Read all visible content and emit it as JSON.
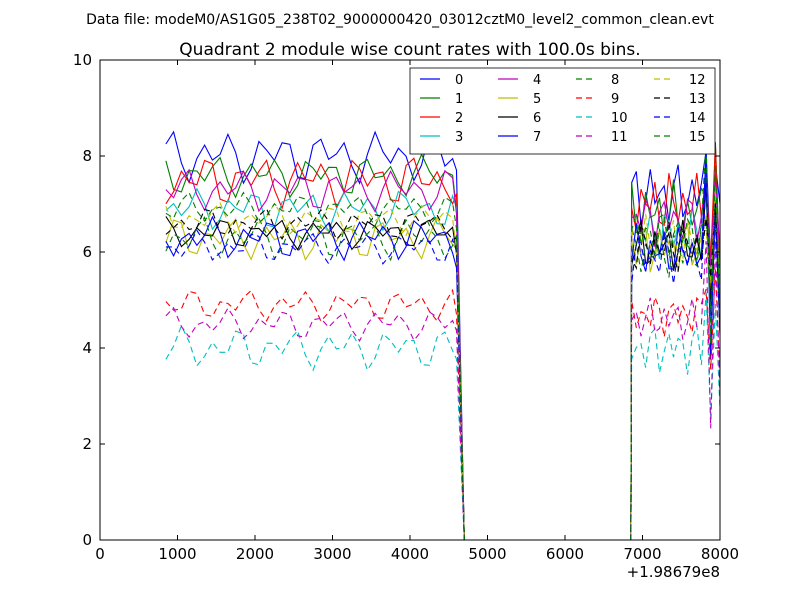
{
  "chart_data": {
    "type": "line",
    "suptitle": "Data file: modeM0/AS1G05_238T02_9000000420_03012cztM0_level2_common_clean.evt",
    "title": "Quadrant 2 module wise count rates with 100.0s bins.",
    "xlabel": "",
    "ylabel": "",
    "x_offset_label": "+1.98679e8",
    "xlim": [
      0,
      8000
    ],
    "ylim": [
      0,
      10
    ],
    "x_ticks": [
      0,
      1000,
      2000,
      3000,
      4000,
      5000,
      6000,
      7000,
      8000
    ],
    "y_ticks": [
      0,
      2,
      4,
      6,
      8,
      10
    ],
    "grid": false,
    "legend_position": "top-right",
    "segment1_x": [
      850,
      950,
      1050,
      1150,
      1250,
      1350,
      1450,
      1550,
      1650,
      1750,
      1850,
      1950,
      2050,
      2150,
      2250,
      2350,
      2450,
      2550,
      2650,
      2750,
      2850,
      2950,
      3050,
      3150,
      3250,
      3350,
      3450,
      3550,
      3650,
      3750,
      3850,
      3950,
      4050,
      4150,
      4250,
      4350,
      4450,
      4550,
      4600
    ],
    "segment2_x": [
      6860,
      6920,
      6980,
      7040,
      7100,
      7160,
      7220,
      7280,
      7340,
      7400,
      7460,
      7520,
      7580,
      7640,
      7700,
      7760,
      7820,
      7880,
      7940,
      8000
    ],
    "gap_start": 4700,
    "gap_end": 6850,
    "series": [
      {
        "name": "0",
        "color": "#0000ff",
        "dash": false,
        "base1": 8.0,
        "amp1": 0.5,
        "base2": 7.2,
        "amp2": 0.6
      },
      {
        "name": "1",
        "color": "#008000",
        "dash": false,
        "base1": 7.6,
        "amp1": 0.4,
        "base2": 6.8,
        "amp2": 0.6
      },
      {
        "name": "2",
        "color": "#ff0000",
        "dash": false,
        "base1": 7.5,
        "amp1": 0.5,
        "base2": 7.0,
        "amp2": 0.6
      },
      {
        "name": "3",
        "color": "#00bfbf",
        "dash": false,
        "base1": 6.9,
        "amp1": 0.4,
        "base2": 6.4,
        "amp2": 0.5
      },
      {
        "name": "4",
        "color": "#bf00bf",
        "dash": false,
        "base1": 7.3,
        "amp1": 0.4,
        "base2": 6.7,
        "amp2": 0.5
      },
      {
        "name": "5",
        "color": "#bfbf00",
        "dash": false,
        "base1": 6.3,
        "amp1": 0.4,
        "base2": 6.1,
        "amp2": 0.5
      },
      {
        "name": "6",
        "color": "#000000",
        "dash": false,
        "base1": 6.4,
        "amp1": 0.3,
        "base2": 6.1,
        "amp2": 0.5
      },
      {
        "name": "7",
        "color": "#0000ff",
        "dash": false,
        "base1": 6.3,
        "amp1": 0.4,
        "base2": 6.0,
        "amp2": 0.5
      },
      {
        "name": "8",
        "color": "#008000",
        "dash": true,
        "base1": 6.3,
        "amp1": 0.4,
        "base2": 6.0,
        "amp2": 0.5
      },
      {
        "name": "9",
        "color": "#ff0000",
        "dash": true,
        "base1": 4.9,
        "amp1": 0.3,
        "base2": 4.7,
        "amp2": 0.4
      },
      {
        "name": "10",
        "color": "#00bfbf",
        "dash": true,
        "base1": 4.0,
        "amp1": 0.4,
        "base2": 4.0,
        "amp2": 0.5
      },
      {
        "name": "11",
        "color": "#bf00bf",
        "dash": true,
        "base1": 4.5,
        "amp1": 0.3,
        "base2": 4.6,
        "amp2": 0.4
      },
      {
        "name": "12",
        "color": "#bfbf00",
        "dash": true,
        "base1": 6.7,
        "amp1": 0.3,
        "base2": 6.2,
        "amp2": 0.5
      },
      {
        "name": "13",
        "color": "#000000",
        "dash": true,
        "base1": 6.6,
        "amp1": 0.3,
        "base2": 6.1,
        "amp2": 0.5
      },
      {
        "name": "14",
        "color": "#0000ff",
        "dash": true,
        "base1": 6.1,
        "amp1": 0.3,
        "base2": 5.9,
        "amp2": 0.5
      },
      {
        "name": "15",
        "color": "#008000",
        "dash": true,
        "base1": 6.9,
        "amp1": 0.3,
        "base2": 6.4,
        "amp2": 0.5
      }
    ]
  }
}
